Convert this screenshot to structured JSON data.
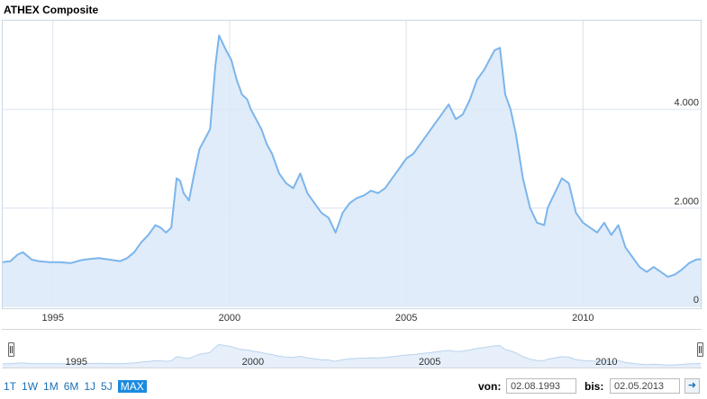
{
  "header": {
    "title": "ATHEX Composite"
  },
  "chart_data": {
    "type": "area",
    "title": "ATHEX Composite",
    "xlabel": "",
    "ylabel": "",
    "ylim": [
      0,
      5800
    ],
    "xlim": [
      1993.58,
      2013.33
    ],
    "y_ticks": [
      "0",
      "2.000",
      "4.000"
    ],
    "y_tick_values": [
      0,
      2000,
      4000
    ],
    "x_ticks": [
      "1995",
      "2000",
      "2005",
      "2010"
    ],
    "x_tick_values": [
      1995,
      2000,
      2005,
      2010
    ],
    "grid": true,
    "series": [
      {
        "name": "",
        "x": [
          1993.58,
          1993.8,
          1994.0,
          1994.15,
          1994.4,
          1994.6,
          1994.9,
          1995.2,
          1995.5,
          1995.8,
          1996.0,
          1996.3,
          1996.6,
          1996.9,
          1997.1,
          1997.3,
          1997.5,
          1997.7,
          1997.9,
          1998.05,
          1998.2,
          1998.35,
          1998.5,
          1998.6,
          1998.7,
          1998.85,
          1999.0,
          1999.15,
          1999.3,
          1999.45,
          1999.6,
          1999.7,
          1999.8,
          1999.9,
          2000.05,
          2000.2,
          2000.35,
          2000.5,
          2000.6,
          2000.75,
          2000.9,
          2001.05,
          2001.2,
          2001.4,
          2001.6,
          2001.8,
          2002.0,
          2002.2,
          2002.4,
          2002.6,
          2002.8,
          2003.0,
          2003.2,
          2003.4,
          2003.6,
          2003.8,
          2004.0,
          2004.2,
          2004.4,
          2004.6,
          2004.8,
          2005.0,
          2005.2,
          2005.4,
          2005.6,
          2005.8,
          2006.0,
          2006.2,
          2006.4,
          2006.6,
          2006.8,
          2007.0,
          2007.2,
          2007.35,
          2007.5,
          2007.65,
          2007.8,
          2007.95,
          2008.1,
          2008.3,
          2008.5,
          2008.7,
          2008.9,
          2009.0,
          2009.2,
          2009.4,
          2009.6,
          2009.8,
          2010.0,
          2010.2,
          2010.4,
          2010.6,
          2010.8,
          2011.0,
          2011.2,
          2011.4,
          2011.6,
          2011.8,
          2012.0,
          2012.2,
          2012.4,
          2012.6,
          2012.8,
          2013.0,
          2013.2,
          2013.33
        ],
        "y": [
          900,
          920,
          1050,
          1100,
          950,
          920,
          900,
          900,
          880,
          940,
          960,
          980,
          950,
          920,
          980,
          1100,
          1300,
          1450,
          1650,
          1600,
          1500,
          1600,
          2600,
          2550,
          2300,
          2150,
          2700,
          3200,
          3400,
          3600,
          4900,
          5500,
          5350,
          5200,
          5000,
          4600,
          4300,
          4200,
          4000,
          3800,
          3600,
          3300,
          3100,
          2700,
          2500,
          2400,
          2700,
          2300,
          2100,
          1900,
          1800,
          1500,
          1900,
          2100,
          2200,
          2250,
          2350,
          2300,
          2400,
          2600,
          2800,
          3000,
          3100,
          3300,
          3500,
          3700,
          3900,
          4100,
          3800,
          3900,
          4200,
          4600,
          4800,
          5000,
          5200,
          5250,
          4300,
          4000,
          3500,
          2600,
          2000,
          1700,
          1650,
          2000,
          2300,
          2600,
          2500,
          1900,
          1700,
          1600,
          1500,
          1700,
          1450,
          1650,
          1200,
          1000,
          800,
          700,
          800,
          700,
          600,
          650,
          750,
          880,
          950,
          960
        ]
      }
    ]
  },
  "navigator": {
    "x_ticks": [
      "1995",
      "2000",
      "2005",
      "2010"
    ],
    "x_tick_values": [
      1995,
      2000,
      2005,
      2010
    ]
  },
  "toolbar": {
    "ranges": [
      "1T",
      "1W",
      "1M",
      "6M",
      "1J",
      "5J",
      "MAX"
    ],
    "active_range": "MAX",
    "from_label": "von:",
    "from_value": "02.08.1993",
    "to_label": "bis:",
    "to_value": "02.05.2013"
  },
  "colors": {
    "line": "#7cb5ec",
    "fill": "#dbe9f8",
    "grid": "#d8e3ee",
    "active": "#1a8be0"
  }
}
